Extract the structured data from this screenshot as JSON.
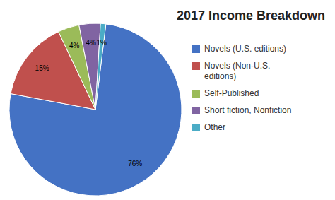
{
  "chart_data": {
    "type": "pie",
    "title": "2017 Income Breakdown",
    "categories": [
      "Novels (U.S. editions)",
      "Novels (Non-U.S.\neditions)",
      "Self-Published",
      "Short fiction, Nonfiction",
      "Other"
    ],
    "values": [
      76,
      15,
      4,
      4,
      1
    ],
    "value_labels": [
      "76%",
      "15%",
      "4%",
      "4%",
      "1%"
    ],
    "colors": [
      "#4472C4",
      "#C0504D",
      "#9BBB59",
      "#8064A2",
      "#4BACC6"
    ],
    "data_labels": true,
    "legend": "right"
  }
}
